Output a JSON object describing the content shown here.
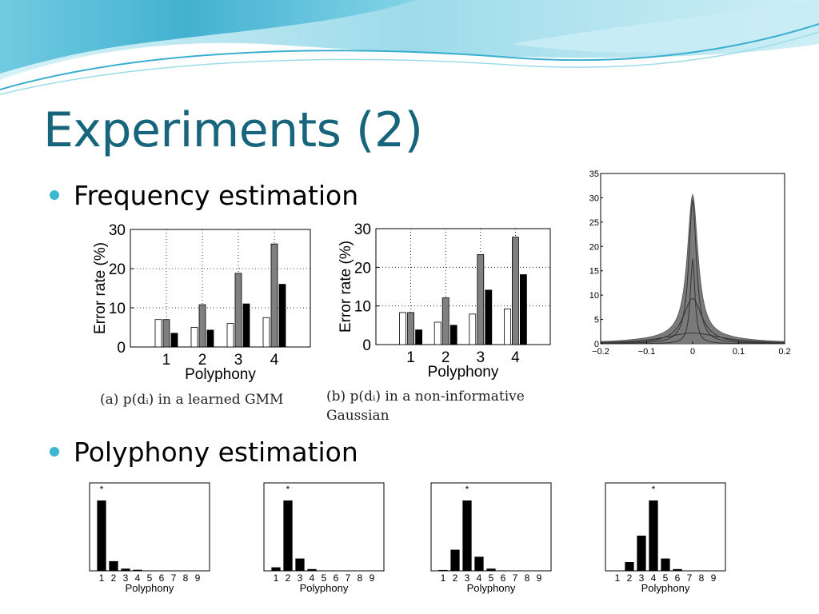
{
  "slide": {
    "title": "Experiments (2)",
    "bullet1": "Frequency estimation",
    "bullet2": "Polyphony estimation",
    "captions": {
      "a": "(a) p(dᵢ) in a learned GMM",
      "b1": "(b) p(dᵢ)  in  a  non-informative",
      "b2": "Gaussian"
    },
    "colors": {
      "title": "#17657c",
      "bullet": "#3bb7cf",
      "banner_light": "#bfeaf2",
      "banner_dark": "#2aa6c8"
    }
  },
  "chart_data": [
    {
      "type": "bar",
      "categories": [
        "1",
        "2",
        "3",
        "4"
      ],
      "series": [
        {
          "values": [
            7,
            5,
            6,
            7.5
          ],
          "color": "#ffffff"
        },
        {
          "values": [
            7,
            10.8,
            18.8,
            26.3
          ],
          "color": "#808080"
        },
        {
          "values": [
            3.5,
            4.3,
            11,
            16
          ],
          "color": "#000000"
        }
      ],
      "xlabel": "Polyphony",
      "ylabel": "Error rate (%)",
      "ylim": [
        0,
        30
      ],
      "yticks": [
        "0",
        "10",
        "20",
        "30"
      ],
      "grid": true
    },
    {
      "type": "bar",
      "categories": [
        "1",
        "2",
        "3",
        "4"
      ],
      "series": [
        {
          "values": [
            8.3,
            5.8,
            7.9,
            9.2
          ],
          "color": "#ffffff"
        },
        {
          "values": [
            8.3,
            12.1,
            23.3,
            27.8
          ],
          "color": "#808080"
        },
        {
          "values": [
            3.8,
            5,
            14.1,
            18.1
          ],
          "color": "#000000"
        }
      ],
      "xlabel": "Polyphony",
      "ylabel": "Error rate (%)",
      "ylim": [
        0,
        30
      ],
      "yticks": [
        "0",
        "10",
        "20",
        "30"
      ],
      "grid": true
    },
    {
      "type": "line",
      "xlim": [
        -0.2,
        0.2
      ],
      "ylim": [
        0,
        35
      ],
      "xticks": [
        "−0.2",
        "−0.1",
        "0",
        "0.1",
        "0.2"
      ],
      "yticks": [
        "0",
        "5",
        "10",
        "15",
        "20",
        "25",
        "30",
        "35"
      ],
      "histogram_peak": 29.5,
      "components": [
        {
          "peak": 29.5,
          "width": 0.01
        },
        {
          "peak": 17.5,
          "width": 0.006
        },
        {
          "peak": 9.3,
          "width": 0.025
        },
        {
          "peak": 2.2,
          "width": 0.075
        }
      ]
    },
    {
      "type": "bar",
      "categories": [
        "1",
        "2",
        "3",
        "4",
        "5",
        "6",
        "7",
        "8",
        "9"
      ],
      "values": [
        0.8,
        0.11,
        0.025,
        0.012,
        0.003,
        0,
        0,
        0,
        0
      ],
      "ylim": [
        0,
        1
      ],
      "marker": "*",
      "marker_category": "1",
      "xlabel": "Polyphony"
    },
    {
      "type": "bar",
      "categories": [
        "1",
        "2",
        "3",
        "4",
        "5",
        "6",
        "7",
        "8",
        "9"
      ],
      "values": [
        0.04,
        0.8,
        0.14,
        0.02,
        0.004,
        0,
        0,
        0,
        0
      ],
      "ylim": [
        0,
        1
      ],
      "marker": "*",
      "marker_category": "2",
      "xlabel": "Polyphony"
    },
    {
      "type": "bar",
      "categories": [
        "1",
        "2",
        "3",
        "4",
        "5",
        "6",
        "7",
        "8",
        "9"
      ],
      "values": [
        0.01,
        0.24,
        0.8,
        0.16,
        0.025,
        0.005,
        0,
        0,
        0
      ],
      "ylim": [
        0,
        1
      ],
      "marker": "*",
      "marker_category": "3",
      "xlabel": "Polyphony"
    },
    {
      "type": "bar",
      "categories": [
        "1",
        "2",
        "3",
        "4",
        "5",
        "6",
        "7",
        "8",
        "9"
      ],
      "values": [
        0,
        0.1,
        0.4,
        0.8,
        0.14,
        0.02,
        0.004,
        0,
        0
      ],
      "ylim": [
        0,
        1
      ],
      "marker": "*",
      "marker_category": "4",
      "xlabel": "Polyphony"
    }
  ]
}
